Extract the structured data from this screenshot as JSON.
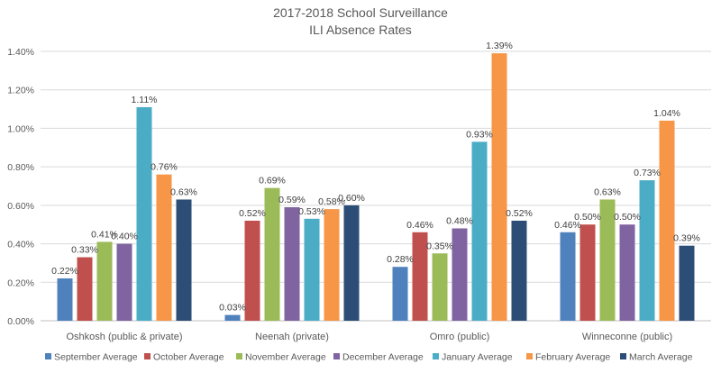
{
  "chart_data": {
    "type": "bar",
    "title": "2017-2018 School Surveillance",
    "subtitle": "ILI Absence Rates",
    "categories": [
      "Oshkosh (public & private)",
      "Neenah (private)",
      "Omro (public)",
      "Winneconne (public)"
    ],
    "series": [
      {
        "name": "September Average",
        "color": "#4f81bd",
        "values": [
          0.22,
          0.03,
          0.28,
          0.46
        ],
        "labels": [
          "0.22%",
          "0.03%",
          "0.28%",
          "0.46%"
        ]
      },
      {
        "name": "October Average",
        "color": "#c0504d",
        "values": [
          0.33,
          0.52,
          0.46,
          0.5
        ],
        "labels": [
          "0.33%",
          "0.52%",
          "0.46%",
          "0.50%"
        ]
      },
      {
        "name": "November Average",
        "color": "#9bbb59",
        "values": [
          0.41,
          0.69,
          0.35,
          0.63
        ],
        "labels": [
          "0.41%",
          "0.69%",
          "0.35%",
          "0.63%"
        ]
      },
      {
        "name": "December Average",
        "color": "#8064a2",
        "values": [
          0.4,
          0.59,
          0.48,
          0.5
        ],
        "labels": [
          "0.40%",
          "0.59%",
          "0.48%",
          "0.50%"
        ]
      },
      {
        "name": "January Average",
        "color": "#4bacc6",
        "values": [
          1.11,
          0.53,
          0.93,
          0.73
        ],
        "labels": [
          "1.11%",
          "0.53%",
          "0.93%",
          "0.73%"
        ]
      },
      {
        "name": "February Average",
        "color": "#f79646",
        "values": [
          0.76,
          0.58,
          1.39,
          1.04
        ],
        "labels": [
          "0.76%",
          "0.58%",
          "1.39%",
          "1.04%"
        ]
      },
      {
        "name": "March Average",
        "color": "#2c4d75",
        "values": [
          0.63,
          0.6,
          0.52,
          0.39
        ],
        "labels": [
          "0.63%",
          "0.60%",
          "0.52%",
          "0.39%"
        ]
      }
    ],
    "ylim": [
      0,
      1.4
    ],
    "yticks": [
      0,
      0.2,
      0.4,
      0.6,
      0.8,
      1.0,
      1.2,
      1.4
    ],
    "ytick_labels": [
      "0.00%",
      "0.20%",
      "0.40%",
      "0.60%",
      "0.80%",
      "1.00%",
      "1.20%",
      "1.40%"
    ],
    "grid": true,
    "legend_position": "bottom"
  }
}
